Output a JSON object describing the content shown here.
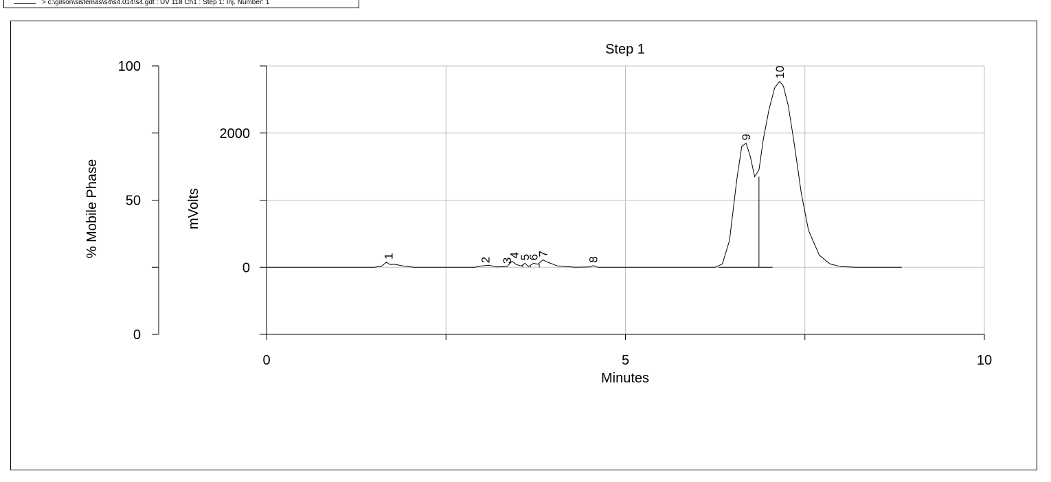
{
  "legend": {
    "text": "> c:\\gilson\\sistemas\\s4\\s4.014\\s4.gdt : UV 118 Ch1 : Step 1: Inj. Number: 1"
  },
  "chart_data": {
    "type": "line",
    "title": "Step 1",
    "xlabel": "Minutes",
    "ylabel": "mVolts",
    "y2label": "% Mobile Phase",
    "xlim": [
      0,
      10
    ],
    "ylim": [
      -1000,
      3000
    ],
    "y2lim": [
      0,
      100
    ],
    "grid": true,
    "x_ticks": [
      0,
      5,
      10
    ],
    "y_ticks": [
      0,
      2000
    ],
    "y2_ticks": [
      0,
      50,
      100
    ],
    "series": [
      {
        "x": [
          0.0,
          1.5,
          1.6,
          1.67,
          1.72,
          1.78,
          1.9,
          2.05,
          2.9,
          3.0,
          3.1,
          3.2,
          3.35,
          3.42,
          3.48,
          3.55,
          3.6,
          3.65,
          3.72,
          3.78,
          3.85,
          3.92,
          4.05,
          4.3,
          4.5,
          4.55,
          4.62,
          6.25,
          6.35,
          6.45,
          6.55,
          6.62,
          6.68,
          6.74,
          6.8,
          6.86,
          6.92,
          7.0,
          7.08,
          7.15,
          7.2,
          7.27,
          7.35,
          7.45,
          7.55,
          7.7,
          7.85,
          8.0,
          8.2,
          8.85
        ],
        "y": [
          0,
          0,
          15,
          75,
          40,
          45,
          20,
          0,
          0,
          20,
          30,
          5,
          10,
          90,
          40,
          20,
          60,
          10,
          60,
          45,
          110,
          75,
          20,
          0,
          5,
          25,
          0,
          0,
          50,
          400,
          1300,
          1800,
          1850,
          1650,
          1350,
          1450,
          1900,
          2350,
          2680,
          2770,
          2700,
          2400,
          1850,
          1100,
          550,
          180,
          50,
          10,
          0,
          0
        ]
      }
    ],
    "peaks": [
      {
        "label": "1",
        "x": 1.7,
        "y": 75
      },
      {
        "label": "2",
        "x": 3.05,
        "y": 20
      },
      {
        "label": "3",
        "x": 3.35,
        "y": 10
      },
      {
        "label": "4",
        "x": 3.45,
        "y": 90
      },
      {
        "label": "5",
        "x": 3.6,
        "y": 60
      },
      {
        "label": "6",
        "x": 3.72,
        "y": 60
      },
      {
        "label": "7",
        "x": 3.85,
        "y": 110
      },
      {
        "label": "8",
        "x": 4.55,
        "y": 25
      },
      {
        "label": "9",
        "x": 6.68,
        "y": 1850
      },
      {
        "label": "10",
        "x": 7.15,
        "y": 2770
      }
    ],
    "peak_dividers": [
      {
        "x": 3.57,
        "y": 40
      },
      {
        "x": 3.68,
        "y": 15
      },
      {
        "x": 3.8,
        "y": 45
      },
      {
        "x": 6.86,
        "y": 1350
      }
    ]
  }
}
